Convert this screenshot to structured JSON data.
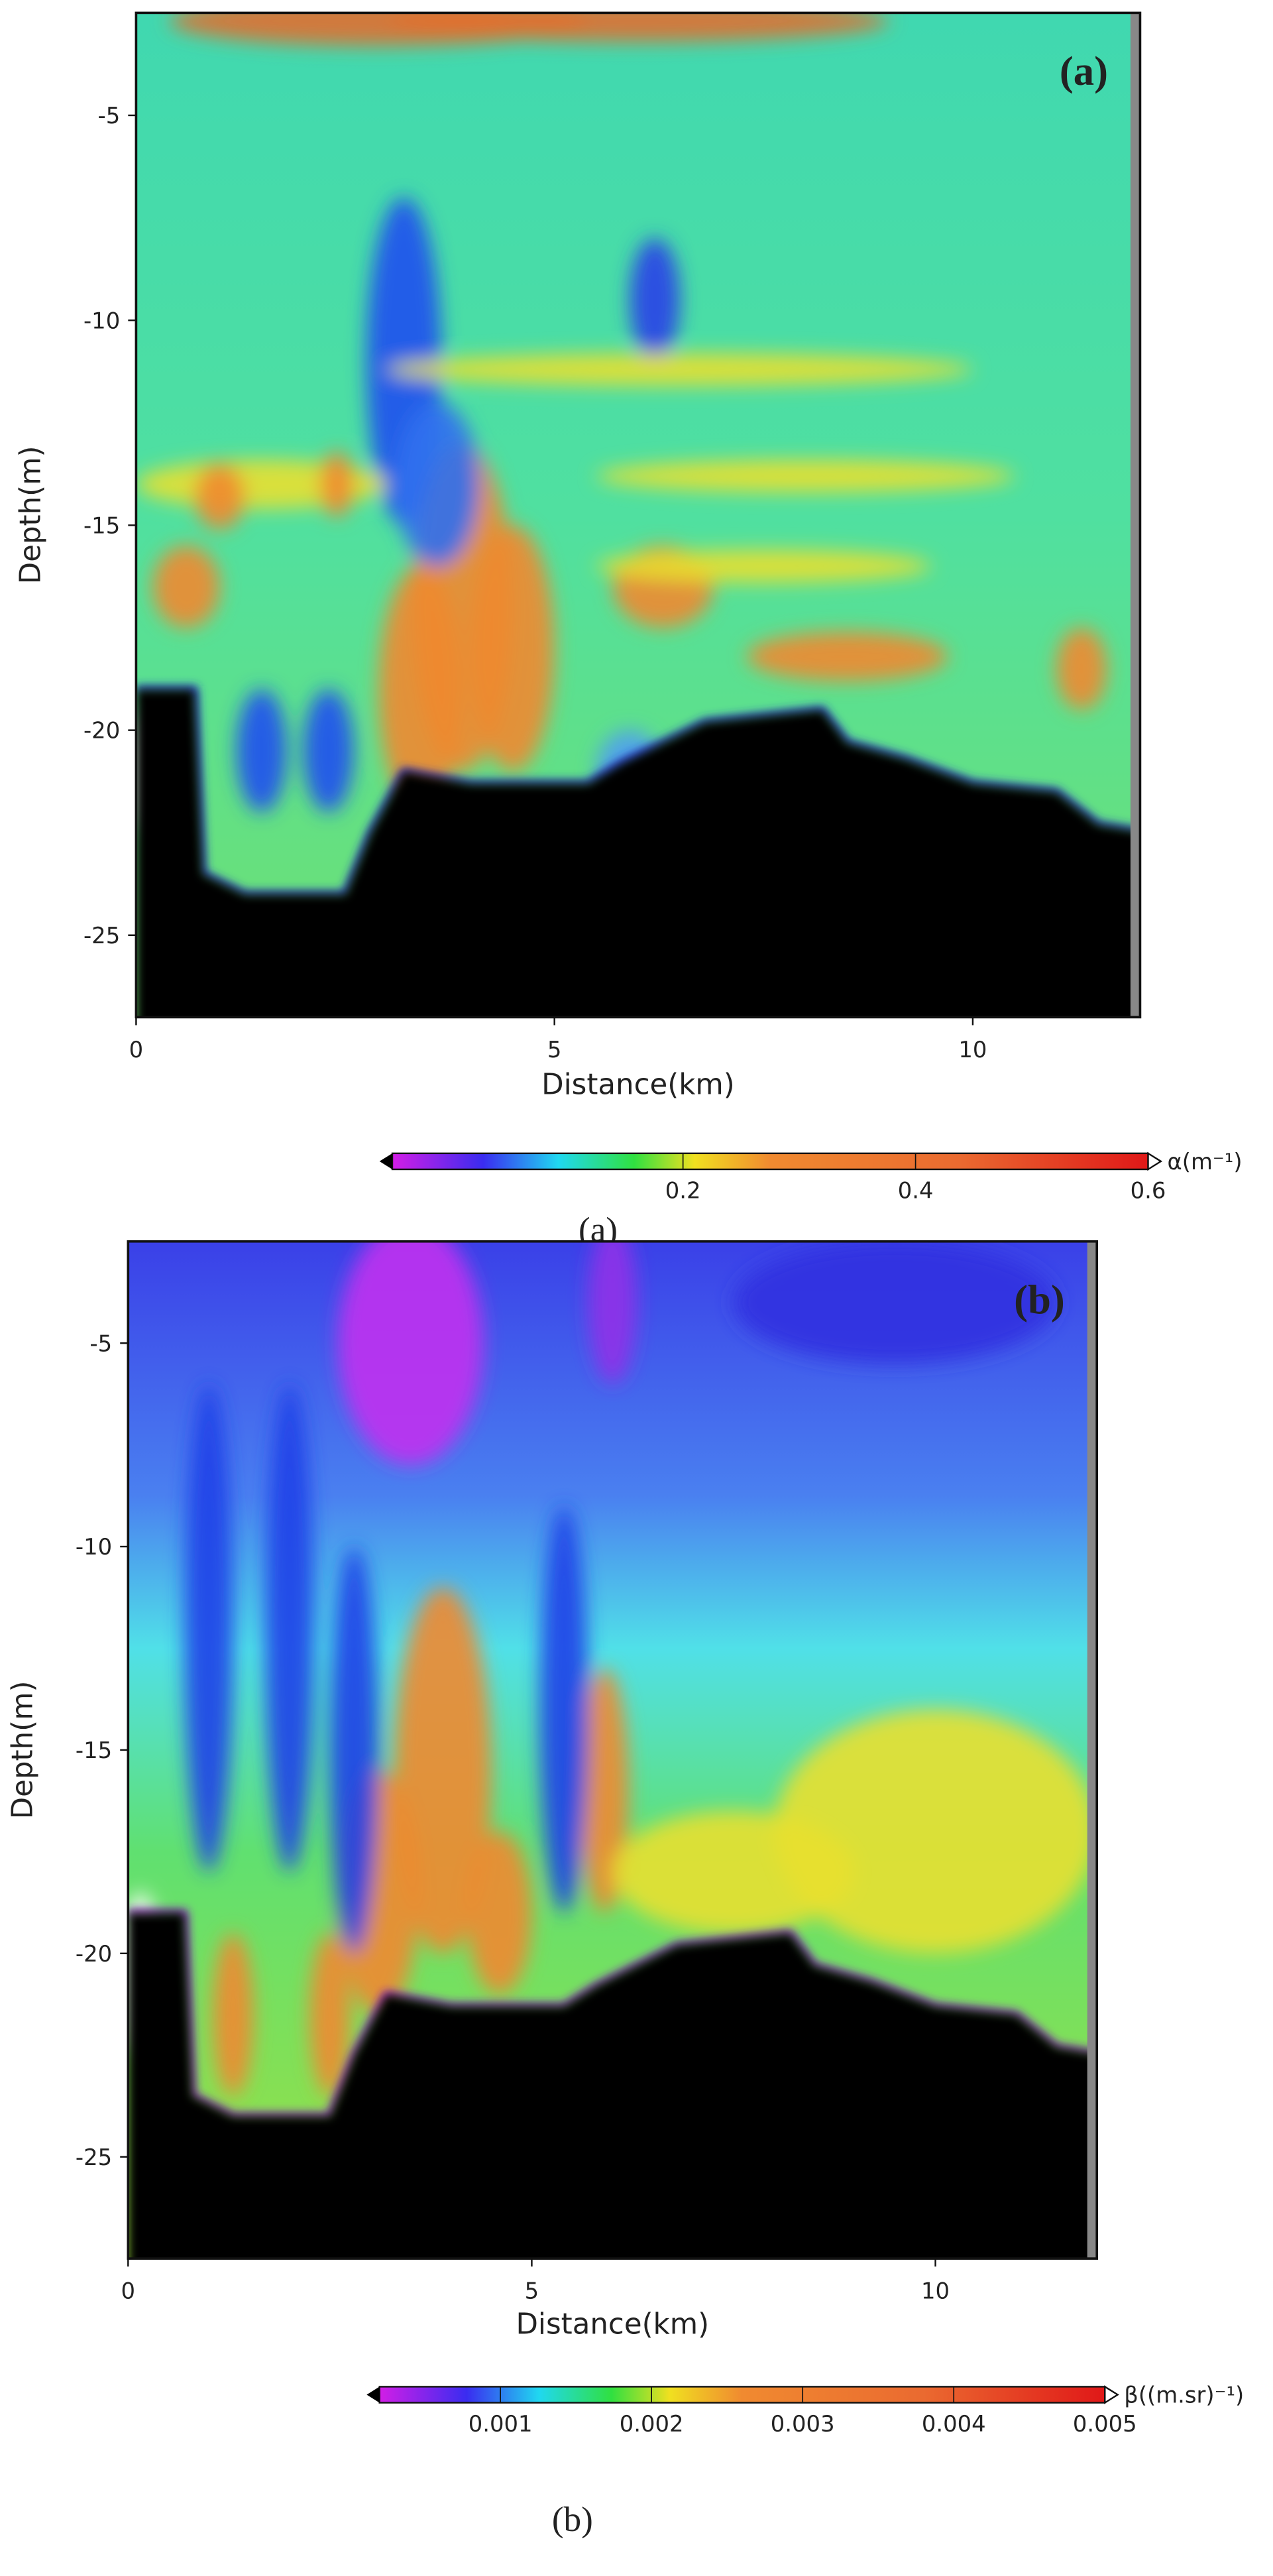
{
  "chart_data": [
    {
      "type": "heatmap",
      "panel_label": "(a)",
      "caption": "(a)",
      "xlabel": "Distance(km)",
      "ylabel": "Depth(m)",
      "xlim": [
        0,
        12
      ],
      "xticks": [
        0,
        5,
        10
      ],
      "ylim": [
        -27,
        -2.5
      ],
      "yticks": [
        -5,
        -10,
        -15,
        -20,
        -25
      ],
      "colorbar": {
        "label": "α(m⁻¹)",
        "lim": [
          -0.05,
          0.6
        ],
        "ticks": [
          0.2,
          0.4,
          0.6
        ]
      }
    },
    {
      "type": "heatmap",
      "panel_label": "(b)",
      "caption": "(b)",
      "xlabel": "Distance(km)",
      "ylabel": "Depth(m)",
      "xlim": [
        0,
        12
      ],
      "xticks": [
        0,
        5,
        10
      ],
      "ylim": [
        -27.5,
        -2.5
      ],
      "yticks": [
        -5,
        -10,
        -15,
        -20,
        -25
      ],
      "colorbar": {
        "label": "β((m.sr)⁻¹)",
        "lim": [
          0.0002,
          0.005
        ],
        "ticks": [
          0.001,
          0.002,
          0.003,
          0.004,
          0.005
        ]
      }
    }
  ]
}
